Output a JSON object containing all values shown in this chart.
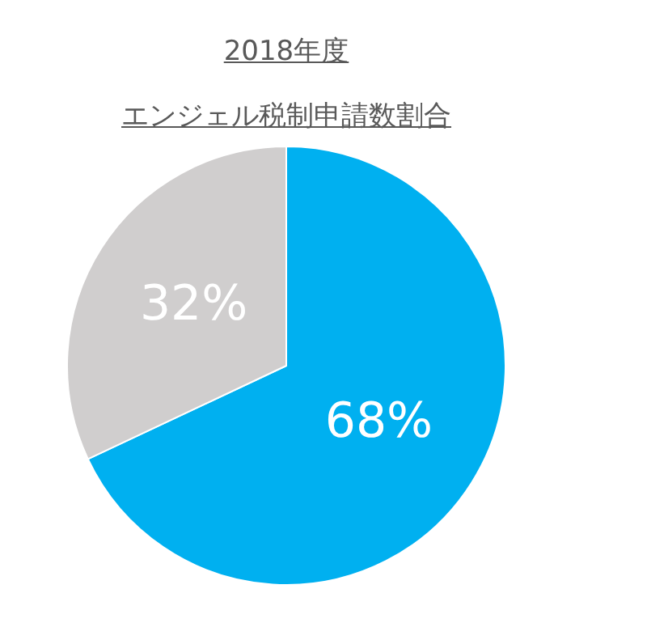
{
  "chart_data": {
    "type": "pie",
    "title": "2018年度",
    "subtitle": "エンジェル税制申請数割合",
    "categories": [
      null,
      null
    ],
    "values": [
      68,
      32
    ],
    "colors": [
      "#00b0f0",
      "#d0cece"
    ],
    "value_labels": [
      "68%",
      "32%"
    ]
  }
}
